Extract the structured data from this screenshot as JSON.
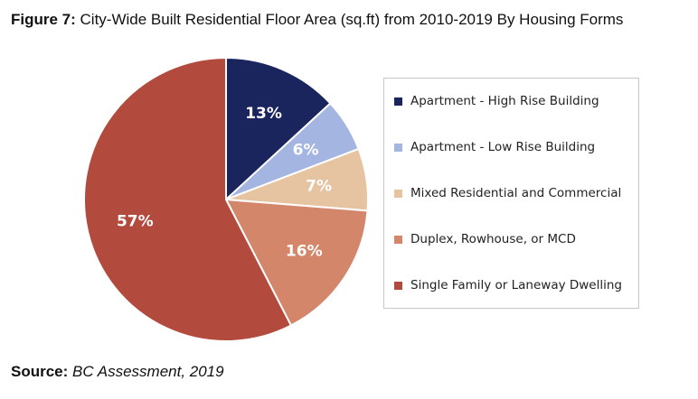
{
  "figure": {
    "label": "Figure 7:",
    "title": "City-Wide Built Residential Floor Area (sq.ft) from 2010-2019 By Housing Forms"
  },
  "source": {
    "label": "Source:",
    "text": "BC Assessment, 2019"
  },
  "chart_data": {
    "type": "pie",
    "slices": [
      {
        "label": "Apartment - High Rise Building",
        "value": 13,
        "display": "13%",
        "color": "#1a255e"
      },
      {
        "label": "Apartment - Low Rise Building",
        "value": 6,
        "display": "6%",
        "color": "#a3b5e0"
      },
      {
        "label": "Mixed Residential and Commercial",
        "value": 7,
        "display": "7%",
        "color": "#e6c4a2"
      },
      {
        "label": "Duplex, Rowhouse, or MCD",
        "value": 16,
        "display": "16%",
        "color": "#d4866a"
      },
      {
        "label": "Single Family or Laneway Dwelling",
        "value": 57,
        "display": "57%",
        "color": "#b24b3d"
      }
    ],
    "legend_position": "right"
  }
}
